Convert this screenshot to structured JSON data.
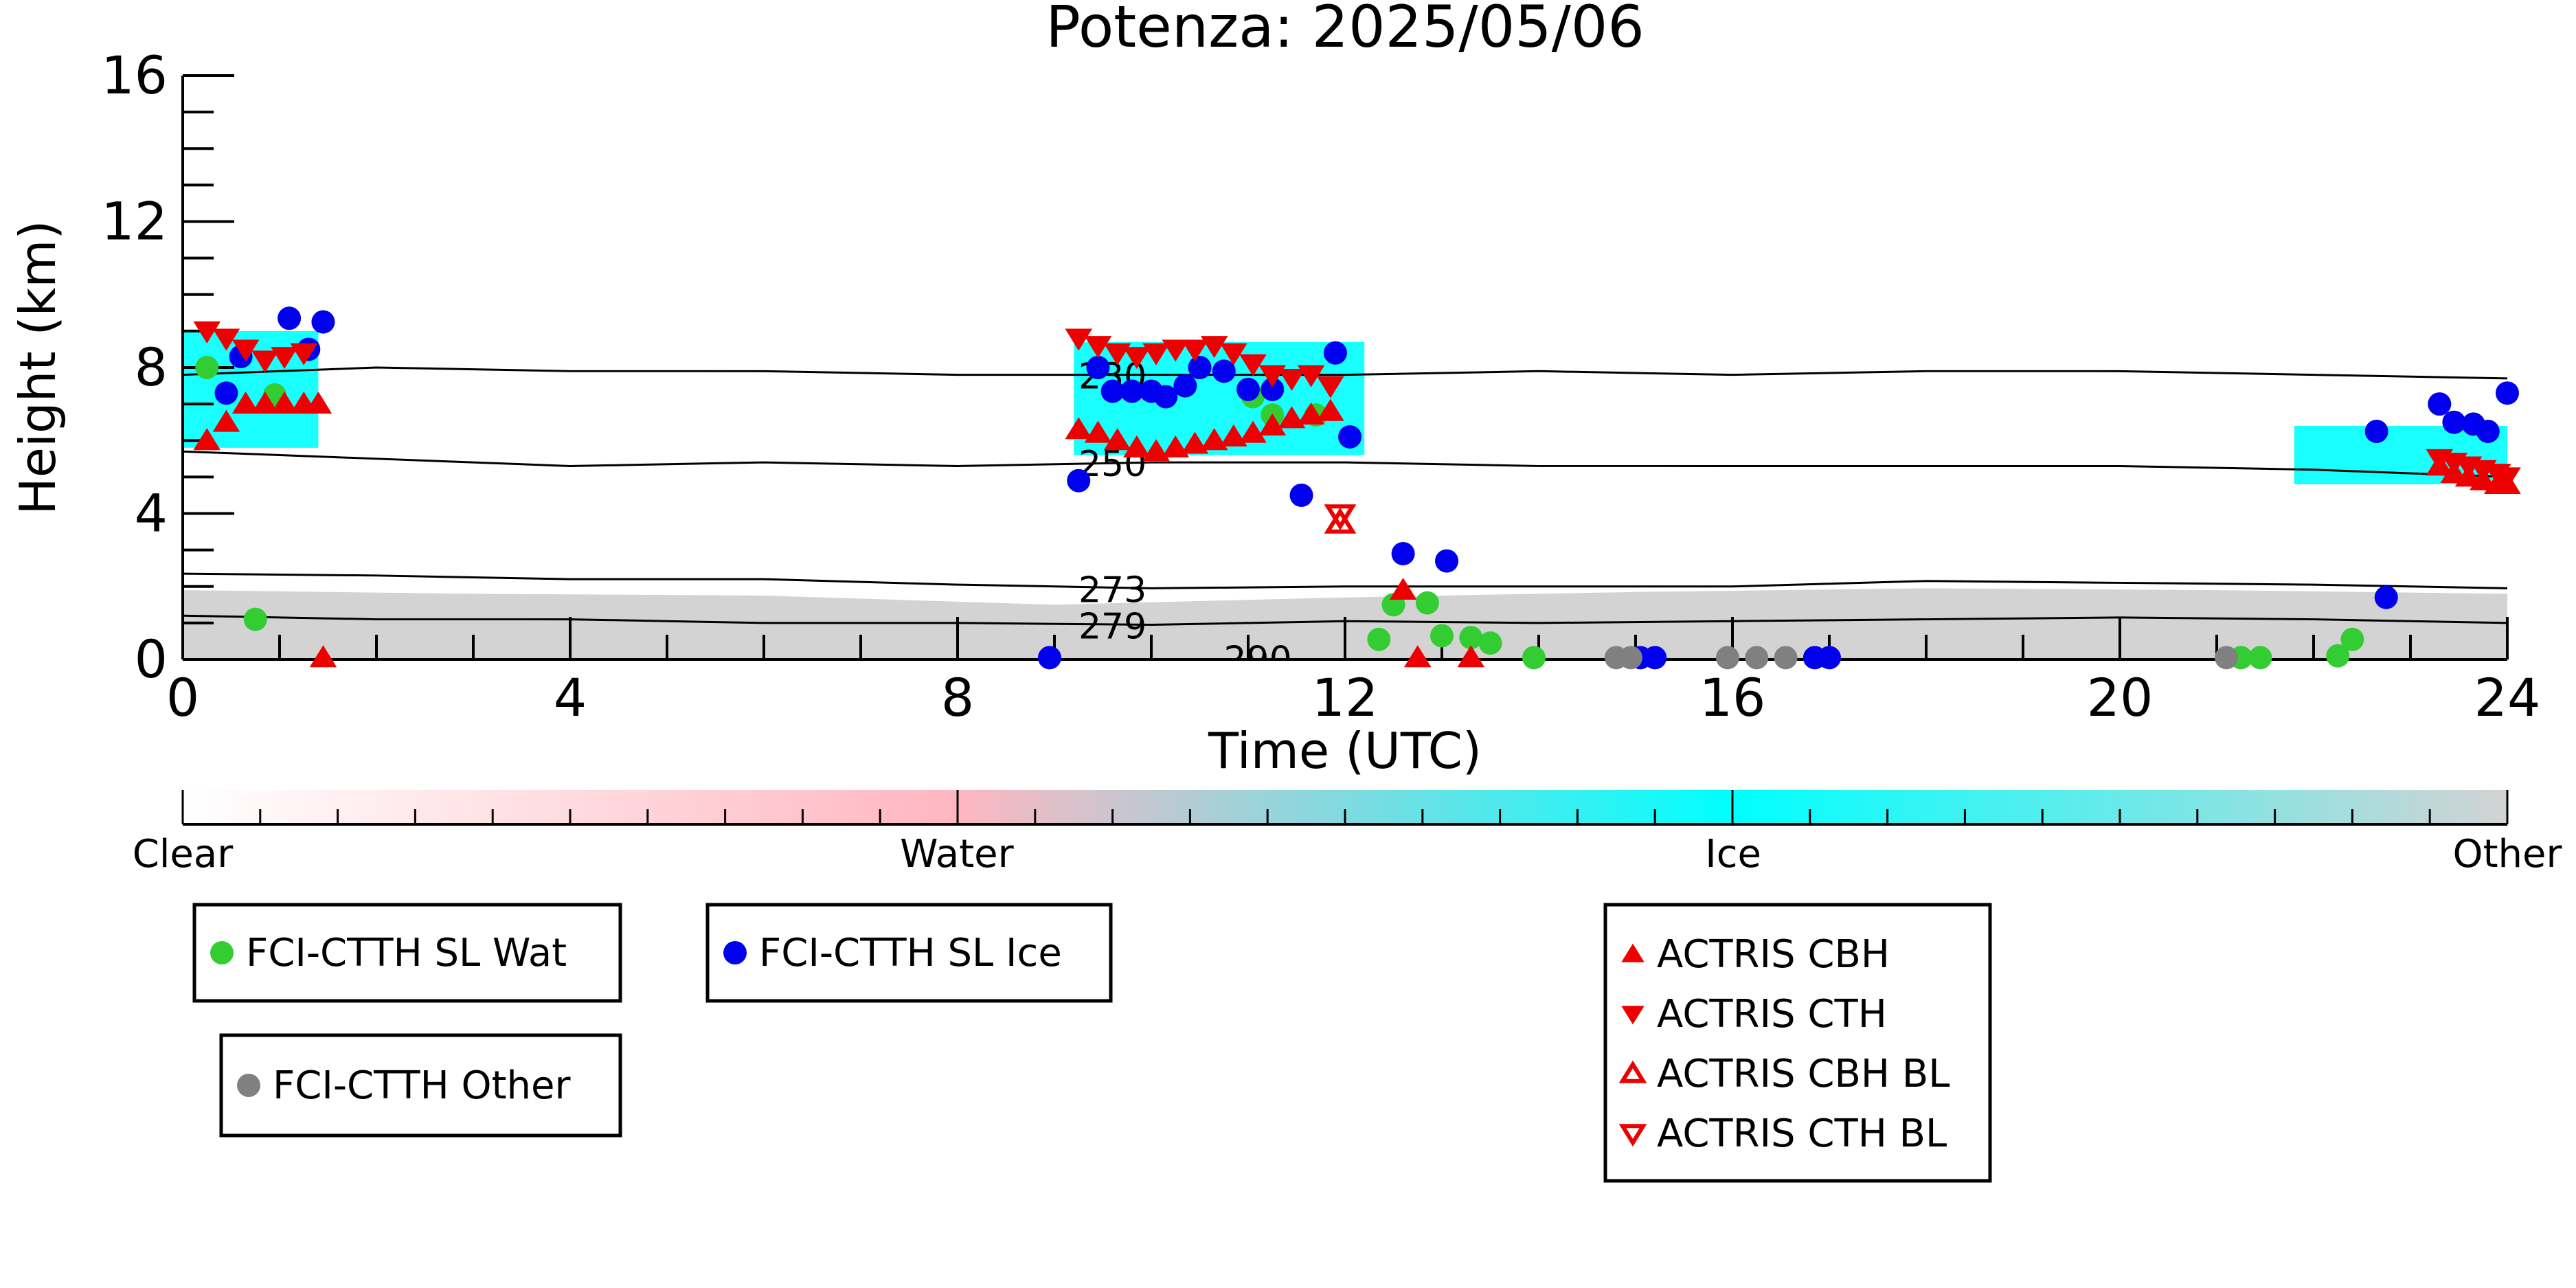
{
  "chart_data": {
    "type": "scatter",
    "title": "Potenza: 2025/05/06",
    "xlabel": "Time (UTC)",
    "ylabel": "Height (km)",
    "xlim": [
      0,
      24
    ],
    "ylim": [
      0,
      16
    ],
    "x_ticks": [
      0,
      4,
      8,
      12,
      16,
      20,
      24
    ],
    "y_ticks": [
      0,
      4,
      8,
      12,
      16
    ],
    "grid": false,
    "colorbar": {
      "labels": [
        {
          "text": "Clear",
          "pos": 0.0
        },
        {
          "text": "Water",
          "pos": 0.333
        },
        {
          "text": "Ice",
          "pos": 0.667
        },
        {
          "text": "Other",
          "pos": 1.0
        }
      ],
      "stops": [
        {
          "pos": 0.0,
          "color": "#ffffff"
        },
        {
          "pos": 0.333,
          "color": "#ffb6c1"
        },
        {
          "pos": 0.667,
          "color": "#00ffff"
        },
        {
          "pos": 1.0,
          "color": "#d3d3d3"
        }
      ]
    },
    "classification_colors": {
      "water": "#ffb6c1",
      "ice": "#00ffff",
      "other": "#d3d3d3"
    },
    "isotherms": [
      {
        "label": "230",
        "label_x": 9.6,
        "points": [
          [
            0,
            7.8
          ],
          [
            2,
            8.0
          ],
          [
            4,
            7.9
          ],
          [
            6,
            7.9
          ],
          [
            8,
            7.8
          ],
          [
            10,
            7.8
          ],
          [
            12,
            7.8
          ],
          [
            14,
            7.9
          ],
          [
            16,
            7.8
          ],
          [
            18,
            7.9
          ],
          [
            20,
            7.9
          ],
          [
            22,
            7.8
          ],
          [
            24,
            7.7
          ]
        ]
      },
      {
        "label": "250",
        "label_x": 9.6,
        "points": [
          [
            0,
            5.7
          ],
          [
            2,
            5.5
          ],
          [
            4,
            5.3
          ],
          [
            6,
            5.4
          ],
          [
            8,
            5.3
          ],
          [
            10,
            5.4
          ],
          [
            12,
            5.4
          ],
          [
            14,
            5.3
          ],
          [
            16,
            5.3
          ],
          [
            18,
            5.3
          ],
          [
            20,
            5.3
          ],
          [
            22,
            5.2
          ],
          [
            24,
            5.0
          ]
        ]
      },
      {
        "label": "273",
        "label_x": 9.6,
        "points": [
          [
            0,
            2.35
          ],
          [
            2,
            2.3
          ],
          [
            4,
            2.2
          ],
          [
            6,
            2.2
          ],
          [
            8,
            2.05
          ],
          [
            10,
            1.95
          ],
          [
            12,
            2.0
          ],
          [
            14,
            2.0
          ],
          [
            16,
            2.0
          ],
          [
            18,
            2.15
          ],
          [
            20,
            2.1
          ],
          [
            22,
            2.05
          ],
          [
            24,
            1.95
          ]
        ]
      },
      {
        "label": "279",
        "label_x": 9.6,
        "points": [
          [
            0,
            1.2
          ],
          [
            2,
            1.1
          ],
          [
            4,
            1.1
          ],
          [
            6,
            1.0
          ],
          [
            8,
            1.0
          ],
          [
            10,
            0.95
          ],
          [
            12,
            1.05
          ],
          [
            14,
            1.0
          ],
          [
            16,
            1.05
          ],
          [
            18,
            1.1
          ],
          [
            20,
            1.15
          ],
          [
            22,
            1.1
          ],
          [
            24,
            1.0
          ]
        ]
      },
      {
        "label": "290",
        "label_x": 11.1,
        "points": []
      }
    ],
    "background_other_top": [
      [
        0,
        1.9
      ],
      [
        3,
        1.8
      ],
      [
        6,
        1.75
      ],
      [
        9,
        1.5
      ],
      [
        12,
        1.7
      ],
      [
        15,
        1.85
      ],
      [
        18,
        1.95
      ],
      [
        21,
        1.9
      ],
      [
        24,
        1.8
      ]
    ],
    "ice_regions": [
      {
        "x": [
          0.0,
          1.4
        ],
        "y_bottom": 5.8,
        "y_top": 9.0
      },
      {
        "x": [
          9.2,
          12.2
        ],
        "y_bottom": 5.6,
        "y_top": 8.7
      },
      {
        "x": [
          21.8,
          24.0
        ],
        "y_bottom": 4.8,
        "y_top": 6.4
      }
    ],
    "series": [
      {
        "name": "FCI-CTTH SL Wat",
        "marker": "circle",
        "color": "#33cc33",
        "points": [
          [
            0.25,
            8.0
          ],
          [
            0.75,
            1.1
          ],
          [
            0.95,
            7.25
          ],
          [
            11.05,
            7.2
          ],
          [
            11.25,
            6.7
          ],
          [
            11.7,
            6.7
          ],
          [
            12.35,
            0.55
          ],
          [
            12.5,
            1.5
          ],
          [
            12.85,
            1.55
          ],
          [
            13.0,
            0.65
          ],
          [
            13.3,
            0.6
          ],
          [
            13.5,
            0.45
          ],
          [
            13.95,
            0.05
          ],
          [
            21.25,
            0.05
          ],
          [
            21.45,
            0.05
          ],
          [
            22.25,
            0.1
          ],
          [
            22.4,
            0.55
          ]
        ]
      },
      {
        "name": "FCI-CTTH SL Ice",
        "marker": "circle",
        "color": "#0000ee",
        "points": [
          [
            0.45,
            7.3
          ],
          [
            0.6,
            8.3
          ],
          [
            1.1,
            9.35
          ],
          [
            1.3,
            8.5
          ],
          [
            1.45,
            9.25
          ],
          [
            8.95,
            0.05
          ],
          [
            9.25,
            4.9
          ],
          [
            9.45,
            8.0
          ],
          [
            9.6,
            7.35
          ],
          [
            9.8,
            7.35
          ],
          [
            10.0,
            7.35
          ],
          [
            10.15,
            7.2
          ],
          [
            10.35,
            7.5
          ],
          [
            10.5,
            8.0
          ],
          [
            10.75,
            7.9
          ],
          [
            11.0,
            7.4
          ],
          [
            11.25,
            7.4
          ],
          [
            11.55,
            4.5
          ],
          [
            11.9,
            8.4
          ],
          [
            12.05,
            6.1
          ],
          [
            12.6,
            2.9
          ],
          [
            13.05,
            2.7
          ],
          [
            15.05,
            0.05
          ],
          [
            15.2,
            0.05
          ],
          [
            16.85,
            0.05
          ],
          [
            17.0,
            0.05
          ],
          [
            22.65,
            6.25
          ],
          [
            22.75,
            1.7
          ],
          [
            23.3,
            7.0
          ],
          [
            23.45,
            6.5
          ],
          [
            23.65,
            6.45
          ],
          [
            23.8,
            6.25
          ],
          [
            24.0,
            7.3
          ]
        ]
      },
      {
        "name": "FCI-CTTH Other",
        "marker": "circle",
        "color": "#808080",
        "points": [
          [
            14.8,
            0.05
          ],
          [
            14.95,
            0.05
          ],
          [
            15.95,
            0.05
          ],
          [
            16.25,
            0.05
          ],
          [
            16.55,
            0.05
          ],
          [
            21.1,
            0.05
          ]
        ]
      },
      {
        "name": "ACTRIS CBH",
        "marker": "triangle-up",
        "color": "#ee0000",
        "filled": true,
        "points": [
          [
            0.25,
            6.0
          ],
          [
            0.45,
            6.5
          ],
          [
            0.65,
            7.0
          ],
          [
            0.85,
            7.0
          ],
          [
            1.05,
            7.0
          ],
          [
            1.25,
            7.0
          ],
          [
            1.4,
            7.0
          ],
          [
            1.45,
            0.05
          ],
          [
            9.25,
            6.3
          ],
          [
            9.45,
            6.2
          ],
          [
            9.65,
            6.0
          ],
          [
            9.85,
            5.8
          ],
          [
            10.05,
            5.7
          ],
          [
            10.25,
            5.8
          ],
          [
            10.45,
            5.9
          ],
          [
            10.65,
            6.0
          ],
          [
            10.85,
            6.1
          ],
          [
            11.05,
            6.2
          ],
          [
            11.25,
            6.4
          ],
          [
            11.45,
            6.6
          ],
          [
            11.65,
            6.7
          ],
          [
            11.85,
            6.8
          ],
          [
            12.6,
            1.9
          ],
          [
            12.75,
            0.05
          ],
          [
            13.3,
            0.05
          ],
          [
            23.3,
            5.3
          ],
          [
            23.45,
            5.1
          ],
          [
            23.6,
            5.0
          ],
          [
            23.75,
            4.9
          ],
          [
            23.9,
            4.8
          ],
          [
            24.0,
            4.8
          ]
        ]
      },
      {
        "name": "ACTRIS CTH",
        "marker": "triangle-down",
        "color": "#ee0000",
        "filled": true,
        "points": [
          [
            0.25,
            9.0
          ],
          [
            0.45,
            8.8
          ],
          [
            0.65,
            8.5
          ],
          [
            0.85,
            8.2
          ],
          [
            1.05,
            8.3
          ],
          [
            1.25,
            8.4
          ],
          [
            9.25,
            8.8
          ],
          [
            9.45,
            8.6
          ],
          [
            9.65,
            8.4
          ],
          [
            9.85,
            8.3
          ],
          [
            10.05,
            8.4
          ],
          [
            10.25,
            8.5
          ],
          [
            10.45,
            8.5
          ],
          [
            10.65,
            8.6
          ],
          [
            10.85,
            8.4
          ],
          [
            11.05,
            8.1
          ],
          [
            11.25,
            7.8
          ],
          [
            11.45,
            7.7
          ],
          [
            11.65,
            7.8
          ],
          [
            11.85,
            7.5
          ],
          [
            23.3,
            5.5
          ],
          [
            23.45,
            5.4
          ],
          [
            23.6,
            5.3
          ],
          [
            23.75,
            5.2
          ],
          [
            23.9,
            5.1
          ],
          [
            24.0,
            5.0
          ]
        ]
      },
      {
        "name": "ACTRIS CBH BL",
        "marker": "triangle-up",
        "color": "#ee0000",
        "filled": false,
        "points": [
          [
            11.95,
            3.75
          ]
        ]
      },
      {
        "name": "ACTRIS CTH BL",
        "marker": "triangle-down",
        "color": "#ee0000",
        "filled": false,
        "points": [
          [
            11.95,
            3.95
          ]
        ]
      }
    ],
    "legend_boxes": [
      {
        "items": [
          "FCI-CTTH SL Wat"
        ]
      },
      {
        "items": [
          "FCI-CTTH SL Ice"
        ]
      },
      {
        "items": [
          "FCI-CTTH Other"
        ]
      },
      {
        "items": [
          "ACTRIS CBH",
          "ACTRIS CTH",
          "ACTRIS CBH BL",
          "ACTRIS CTH BL"
        ]
      }
    ]
  }
}
